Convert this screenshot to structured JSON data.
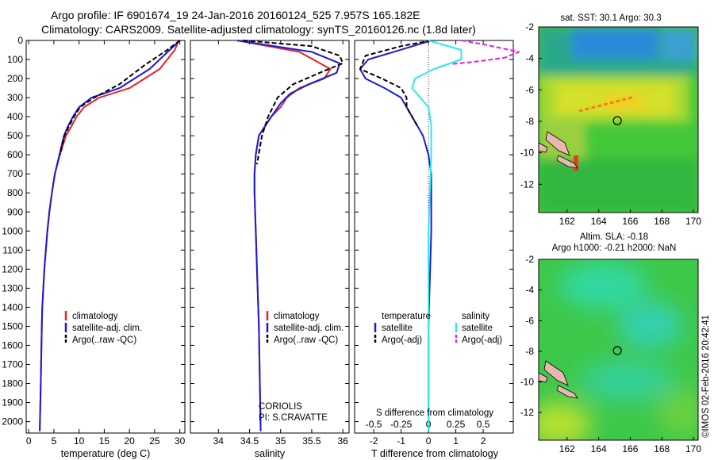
{
  "header": {
    "line1": "Argo profile: IF 6901674_19 24-Jan-2016 20160124_525 7.957S 165.182E",
    "line2": "Climatology: CARS2009. Satellite-adjusted climatology: synTS_20160126.nc (1.8d later)"
  },
  "colors": {
    "climatology": "#e8232a",
    "satellite": "#1a1ad6",
    "argo": "#000000",
    "sat_salinity": "#2ee8f0",
    "argo_salinity": "#e020e0"
  },
  "chart_data": [
    {
      "type": "line",
      "name": "temperature",
      "xlabel": "temperature (deg C)",
      "xlim": [
        -0.5,
        31
      ],
      "xticks": [
        0,
        5,
        10,
        15,
        20,
        25,
        30
      ],
      "ylim": [
        2060,
        0
      ],
      "yticks": [
        0,
        100,
        200,
        300,
        400,
        500,
        600,
        700,
        800,
        900,
        1000,
        1100,
        1200,
        1300,
        1400,
        1500,
        1600,
        1700,
        1800,
        1900,
        2000
      ],
      "legend": [
        "climatology",
        "satellite-adj. clim.",
        "Argo(..raw -QC)"
      ],
      "series": [
        {
          "name": "climatology",
          "color_key": "climatology",
          "x": [
            29.8,
            29.0,
            26.0,
            20.0,
            14.0,
            11.0,
            9.5,
            8.5,
            7.4,
            6.2,
            5.2,
            4.6,
            4.1,
            3.7,
            3.4,
            3.1,
            2.9,
            2.7,
            2.6,
            2.4,
            2.2
          ],
          "y": [
            0,
            50,
            150,
            250,
            300,
            350,
            400,
            450,
            500,
            600,
            700,
            800,
            900,
            1000,
            1100,
            1200,
            1300,
            1400,
            1500,
            1800,
            2050
          ]
        },
        {
          "name": "satellite-adj. clim.",
          "color_key": "satellite",
          "x": [
            30.0,
            28.0,
            24.0,
            18.0,
            12.5,
            10.0,
            8.8,
            7.8,
            7.0,
            6.1,
            5.2,
            4.6,
            4.1,
            3.7,
            3.4,
            3.1,
            2.9,
            2.7,
            2.6,
            2.4,
            2.2
          ],
          "y": [
            0,
            50,
            150,
            250,
            300,
            350,
            400,
            450,
            500,
            600,
            700,
            800,
            900,
            1000,
            1100,
            1200,
            1300,
            1400,
            1500,
            1800,
            2050
          ]
        },
        {
          "name": "Argo(..raw -QC)",
          "color_key": "argo",
          "dash": true,
          "x": [
            30.0,
            27.5,
            23.0,
            18.0,
            13.0,
            10.2,
            9.0,
            8.0,
            7.1,
            6.2
          ],
          "y": [
            0,
            50,
            130,
            230,
            300,
            350,
            400,
            450,
            500,
            600
          ]
        }
      ]
    },
    {
      "type": "line",
      "name": "salinity",
      "xlabel": "salinity",
      "xlim": [
        33.55,
        36.1
      ],
      "xticks": [
        34,
        34.5,
        35,
        35.5,
        36
      ],
      "ylim": [
        2060,
        0
      ],
      "legend": [
        "climatology",
        "satellite-adj. clim.",
        "Argo(..raw -QC)"
      ],
      "annotations": [
        "CORIOLIS",
        "PI: S.CRAVATTE"
      ],
      "series": [
        {
          "name": "climatology",
          "color_key": "climatology",
          "x": [
            34.3,
            35.3,
            35.8,
            35.7,
            35.3,
            35.1,
            35.0,
            34.85,
            34.75,
            34.65,
            34.6,
            34.58,
            34.58,
            34.6,
            34.62,
            34.65,
            34.68
          ],
          "y": [
            0,
            60,
            150,
            200,
            250,
            300,
            350,
            400,
            450,
            500,
            600,
            700,
            800,
            1000,
            1200,
            1500,
            2050
          ]
        },
        {
          "name": "satellite-adj. clim.",
          "color_key": "satellite",
          "x": [
            34.3,
            35.5,
            35.95,
            35.9,
            35.45,
            35.15,
            35.0,
            34.85,
            34.75,
            34.65,
            34.6,
            34.58,
            34.58,
            34.6,
            34.62,
            34.65,
            34.68
          ],
          "y": [
            0,
            60,
            120,
            170,
            230,
            280,
            330,
            400,
            450,
            500,
            600,
            700,
            800,
            1000,
            1200,
            1500,
            2050
          ]
        },
        {
          "name": "Argo(..raw -QC)",
          "color_key": "argo",
          "dash": true,
          "x": [
            34.4,
            35.5,
            35.95,
            36.0,
            35.7,
            35.2,
            34.95,
            34.8,
            34.7,
            34.62
          ],
          "y": [
            0,
            30,
            80,
            120,
            160,
            230,
            300,
            400,
            500,
            650
          ]
        }
      ]
    },
    {
      "type": "line",
      "name": "difference",
      "xlabel": "T difference from climatology",
      "xlim": [
        -2.7,
        3.1
      ],
      "xticks": [
        -2,
        -1,
        0,
        1,
        2
      ],
      "top_xlabel": "S difference from climatology",
      "top_xticks": [
        "-0.5",
        "-0.25",
        "0",
        "0.25",
        "0.5"
      ],
      "ylim": [
        2060,
        0
      ],
      "legend_headers": [
        "temperature",
        "salinity"
      ],
      "legend": [
        "satellite",
        "Argo(-adj)",
        "satellite",
        "Argo(-adj)"
      ],
      "series": [
        {
          "name": "satellite",
          "color_key": "satellite",
          "x": [
            0.1,
            -0.8,
            -2.2,
            -2.5,
            -2.3,
            -1.6,
            -1.0,
            -0.8,
            -0.6,
            -0.4,
            -0.2,
            0.0,
            0.1,
            0.1,
            0.0,
            0.0
          ],
          "y": [
            0,
            40,
            100,
            150,
            200,
            250,
            300,
            350,
            400,
            450,
            500,
            600,
            700,
            1000,
            1500,
            2050
          ]
        },
        {
          "name": "Argo(-adj)",
          "color_key": "argo",
          "dash": true,
          "x": [
            0.1,
            -1.0,
            -2.3,
            -2.5,
            -1.7,
            -1.0,
            -0.8,
            -0.8,
            -0.6,
            -0.4
          ],
          "y": [
            0,
            30,
            80,
            150,
            200,
            250,
            300,
            350,
            400,
            450
          ]
        },
        {
          "name": "satellite salinity",
          "color_key": "sat_salinity",
          "x": [
            0.0,
            1.2,
            1.2,
            0.2,
            -0.5,
            -0.6,
            -0.3,
            0.0,
            0.1,
            0.1,
            0.0,
            0.0
          ],
          "y": [
            0,
            50,
            100,
            150,
            200,
            250,
            300,
            350,
            450,
            600,
            1000,
            2050
          ]
        },
        {
          "name": "Argo salinity",
          "color_key": "argo_salinity",
          "dash": true,
          "x": [
            1.2,
            2.0,
            3.3,
            2.8,
            1.8,
            0.8
          ],
          "y": [
            0,
            20,
            60,
            90,
            110,
            125
          ]
        }
      ]
    },
    {
      "type": "heatmap",
      "name": "sst-map",
      "title": "sat. SST: 30.1  Argo: 30.3",
      "xticks": [
        162,
        164,
        166,
        168,
        170
      ],
      "yticks": [
        -2,
        -4,
        -6,
        -8,
        -10,
        -12
      ],
      "xlim": [
        160.2,
        170.3
      ],
      "ylim": [
        -13.8,
        -2
      ],
      "argo_position": {
        "lon": 165.182,
        "lat": -7.957
      }
    },
    {
      "type": "heatmap",
      "name": "sla-map",
      "title": "Altim. SLA: -0.18",
      "subtitle": "Argo h1000: -0.21  h2000: NaN",
      "xticks": [
        162,
        164,
        166,
        168,
        170
      ],
      "yticks": [
        -2,
        -4,
        -6,
        -8,
        -10,
        -12
      ],
      "xlim": [
        160.2,
        170.3
      ],
      "ylim": [
        -13.8,
        -2
      ],
      "argo_position": {
        "lon": 165.182,
        "lat": -7.957
      }
    }
  ],
  "credit": "©IMOS 02-Feb-2016 20:42:41"
}
